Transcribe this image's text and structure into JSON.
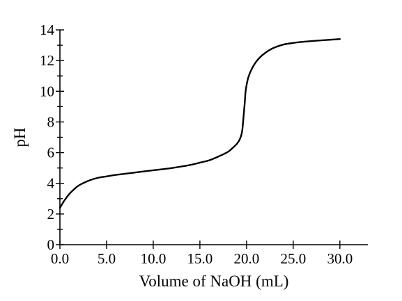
{
  "chart_data": {
    "type": "line",
    "title": "",
    "xlabel": "Volume of NaOH (mL)",
    "ylabel": "pH",
    "xlim": [
      0,
      33
    ],
    "ylim": [
      0,
      14
    ],
    "grid": false,
    "legend": "none",
    "x_ticks": [
      0,
      5,
      10,
      15,
      20,
      25,
      30
    ],
    "x_tick_labels": [
      "0.0",
      "5.0",
      "10.0",
      "15.0",
      "20.0",
      "25.0",
      "30.0"
    ],
    "y_ticks": [
      0,
      2,
      4,
      6,
      8,
      10,
      12,
      14
    ],
    "y_tick_labels": [
      "0",
      "2",
      "4",
      "6",
      "8",
      "10",
      "12",
      "14"
    ],
    "y_minor_step": 1,
    "series": [
      {
        "color": "#000000",
        "x": [
          0.0,
          0.5,
          1.0,
          1.5,
          2.0,
          3.0,
          4.0,
          5.0,
          6.0,
          8.0,
          10.0,
          12.0,
          14.0,
          15.0,
          16.0,
          17.0,
          18.0,
          18.5,
          19.0,
          19.3,
          19.5,
          19.6,
          19.7,
          19.8,
          19.9,
          20.1,
          20.3,
          20.6,
          21.0,
          21.5,
          22.0,
          22.5,
          23.0,
          24.0,
          25.0,
          26.0,
          27.0,
          28.0,
          29.0,
          30.0
        ],
        "y": [
          2.4,
          2.9,
          3.3,
          3.6,
          3.85,
          4.15,
          4.35,
          4.45,
          4.55,
          4.7,
          4.85,
          5.0,
          5.2,
          5.35,
          5.5,
          5.75,
          6.05,
          6.3,
          6.6,
          6.9,
          7.3,
          7.8,
          8.5,
          9.2,
          10.0,
          10.7,
          11.1,
          11.5,
          11.9,
          12.25,
          12.5,
          12.7,
          12.85,
          13.05,
          13.15,
          13.22,
          13.27,
          13.32,
          13.36,
          13.4
        ]
      }
    ]
  }
}
